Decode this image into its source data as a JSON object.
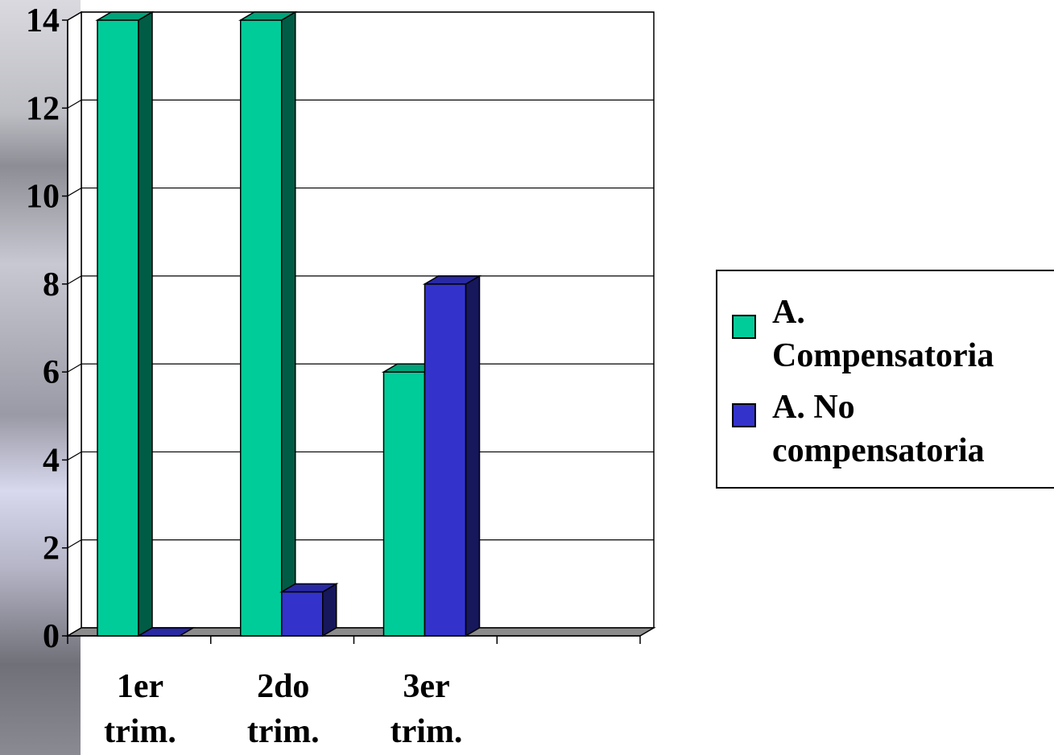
{
  "chart_data": {
    "type": "bar",
    "categories": [
      [
        "1er",
        "trim."
      ],
      [
        "2do",
        "trim."
      ],
      [
        "3er",
        "trim."
      ],
      ""
    ],
    "series": [
      {
        "name": [
          "A.",
          "Compensatoria"
        ],
        "values": [
          14,
          14,
          6,
          null
        ],
        "color": "#00CC99"
      },
      {
        "name": [
          "A. No",
          "compensatoria"
        ],
        "values": [
          0,
          1,
          8,
          null
        ],
        "color": "#3333CC"
      }
    ],
    "y_ticks": [
      "0",
      "2",
      "4",
      "6",
      "8",
      "10",
      "12",
      "14"
    ],
    "ylim": [
      0,
      14
    ],
    "grid": true,
    "legend_position": "right",
    "style": "3d-clustered-column",
    "title": "",
    "xlabel": "",
    "ylabel": ""
  }
}
